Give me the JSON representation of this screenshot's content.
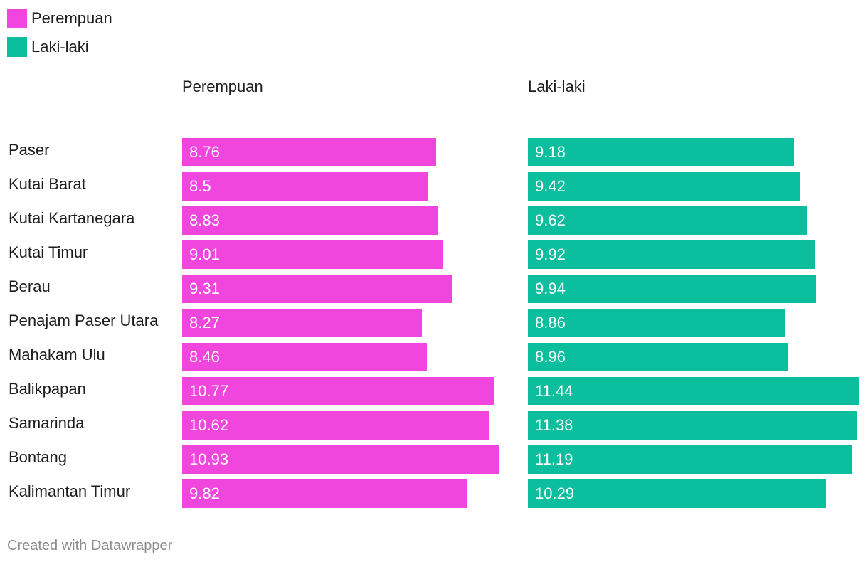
{
  "colors": {
    "perempuan": "#f046de",
    "laki_laki": "#0bbf9e"
  },
  "legend": {
    "perempuan": "Perempuan",
    "laki_laki": "Laki-laki"
  },
  "footer": "Created with Datawrapper",
  "chart_data": {
    "type": "bar",
    "orientation": "horizontal",
    "layout": "split-bars",
    "title": "",
    "legend_position": "top-left",
    "grid": false,
    "categories": [
      "Paser",
      "Kutai Barat",
      "Kutai Kartanegara",
      "Kutai Timur",
      "Berau",
      "Penajam Paser Utara",
      "Mahakam Ulu",
      "Balikpapan",
      "Samarinda",
      "Bontang",
      "Kalimantan Timur"
    ],
    "series": [
      {
        "name": "Perempuan",
        "values": [
          8.76,
          8.5,
          8.83,
          9.01,
          9.31,
          8.27,
          8.46,
          10.77,
          10.62,
          10.93,
          9.82
        ],
        "labels": [
          "8.76",
          "8.5",
          "8.83",
          "9.01",
          "9.31",
          "8.27",
          "8.46",
          "10.77",
          "10.62",
          "10.93",
          "9.82"
        ]
      },
      {
        "name": "Laki-laki",
        "values": [
          9.18,
          9.42,
          9.62,
          9.92,
          9.94,
          8.86,
          8.96,
          11.44,
          11.38,
          11.19,
          10.29
        ],
        "labels": [
          "9.18",
          "9.42",
          "9.62",
          "9.92",
          "9.94",
          "8.86",
          "8.96",
          "11.44",
          "11.38",
          "11.19",
          "10.29"
        ]
      }
    ]
  }
}
